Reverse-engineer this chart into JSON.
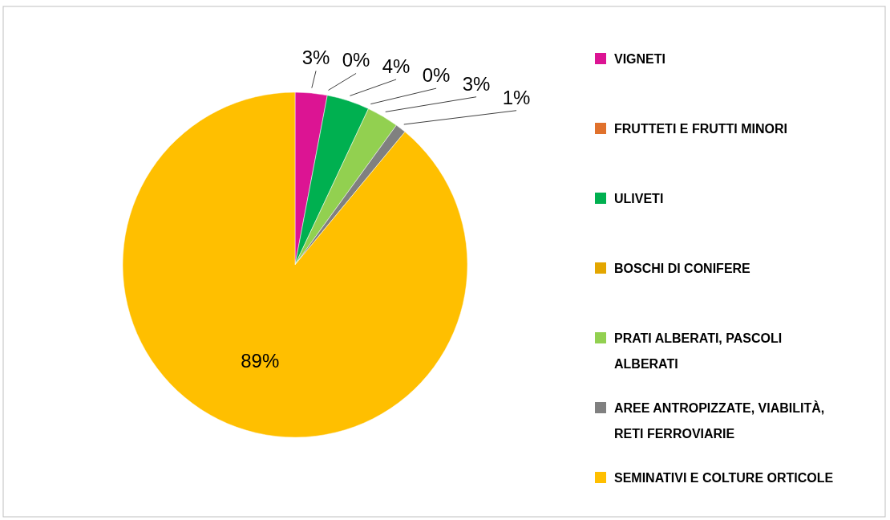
{
  "chart_data": {
    "type": "pie",
    "categories": [
      "VIGNETI",
      "FRUTTETI E FRUTTI MINORI",
      "ULIVETI",
      "BOSCHI DI CONIFERE",
      "PRATI ALBERATI, PASCOLI ALBERATI",
      "AREE ANTROPIZZATE, VIABILITÀ, RETI FERROVIARIE",
      "SEMINATIVI E COLTURE ORTICOLE"
    ],
    "values": [
      3,
      0,
      4,
      0,
      3,
      1,
      89
    ],
    "value_labels": [
      "3%",
      "0%",
      "4%",
      "0%",
      "3%",
      "1%",
      "89%"
    ],
    "colors": [
      "#dc1493",
      "#e0712c",
      "#00b050",
      "#e3a600",
      "#92d050",
      "#808080",
      "#ffbf00"
    ],
    "legend": "right"
  }
}
